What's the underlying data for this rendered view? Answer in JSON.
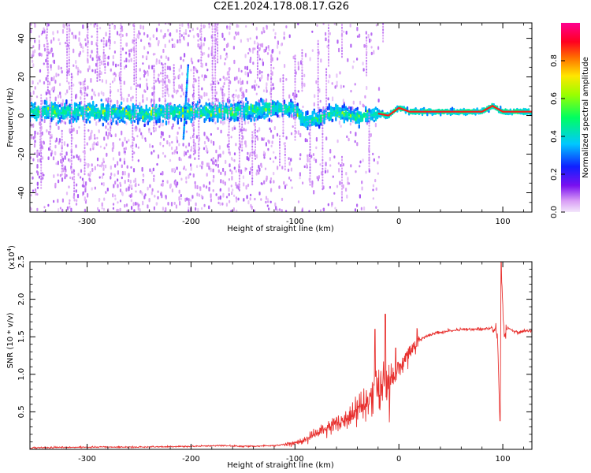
{
  "title": "C2E1.2024.178.08.17.G26",
  "chart_data": [
    {
      "type": "heatmap",
      "xlabel": "Height of straight line (km)",
      "ylabel": "Frequency (Hz)",
      "xlim": [
        -355,
        128
      ],
      "ylim": [
        -50,
        48
      ],
      "xticks": [
        -300,
        -200,
        -100,
        0,
        100
      ],
      "yticks": [
        -40,
        -20,
        0,
        20,
        40
      ],
      "grid": false,
      "colorbar": {
        "label": "Normalized spectral amplitude",
        "range": [
          0.0,
          1.0
        ],
        "ticks": [
          0.0,
          0.2,
          0.4,
          0.6,
          0.8
        ],
        "colormap": "rainbow (light violet → violet → blue → cyan → green → yellow → orange → red → magenta)"
      },
      "ridge": {
        "description": "dominant frequency ridge",
        "x": [
          -355,
          -300,
          -250,
          -200,
          -150,
          -120,
          -100,
          -90,
          -80,
          -60,
          -40,
          -20,
          -10,
          0,
          10,
          30,
          60,
          80,
          90,
          100,
          128
        ],
        "y": [
          2,
          2,
          1,
          2,
          2,
          4,
          3,
          -3,
          -2,
          2,
          -1,
          1,
          0,
          4,
          2,
          2,
          2,
          2,
          5,
          2,
          2
        ]
      }
    },
    {
      "type": "line",
      "xlabel": "Height of straight line (km)",
      "ylabel": "SNR (10 * v/v)",
      "yscale_label": "(x10",
      "yscale_exp": "4",
      "yscale_close": ")",
      "xlim": [
        -355,
        128
      ],
      "ylim": [
        0,
        2.5
      ],
      "xticks": [
        -300,
        -200,
        -100,
        0,
        100
      ],
      "yticks": [
        0.5,
        1.0,
        1.5,
        2.0,
        2.5
      ],
      "ytick_labels": [
        "0.5",
        "1.0",
        "1.5",
        "2.0",
        "2.5"
      ],
      "grid": false,
      "series": [
        {
          "color": "#e8312f",
          "x": [
            -355,
            -300,
            -250,
            -200,
            -170,
            -150,
            -120,
            -100,
            -90,
            -80,
            -70,
            -60,
            -50,
            -40,
            -30,
            -20,
            -15,
            -10,
            -5,
            0,
            5,
            10,
            15,
            20,
            25,
            30,
            35,
            40,
            50,
            60,
            70,
            80,
            90,
            95,
            97,
            99,
            101,
            105,
            110,
            115,
            120,
            128
          ],
          "y": [
            0.02,
            0.03,
            0.03,
            0.04,
            0.05,
            0.04,
            0.05,
            0.08,
            0.12,
            0.2,
            0.28,
            0.35,
            0.4,
            0.55,
            0.7,
            0.8,
            0.85,
            0.9,
            1.0,
            1.1,
            1.2,
            1.3,
            1.4,
            1.45,
            1.5,
            1.52,
            1.55,
            1.56,
            1.58,
            1.6,
            1.6,
            1.6,
            1.62,
            1.5,
            0.4,
            2.3,
            1.55,
            1.62,
            1.58,
            1.55,
            1.58,
            1.58
          ],
          "spikes": [
            {
              "x": 98.5,
              "y": 2.5
            },
            {
              "x": 97.5,
              "y": 0.38
            },
            {
              "x": -13,
              "y": 1.8
            },
            {
              "x": -23,
              "y": 1.6
            },
            {
              "x": -3,
              "y": 1.35
            }
          ]
        }
      ]
    }
  ]
}
